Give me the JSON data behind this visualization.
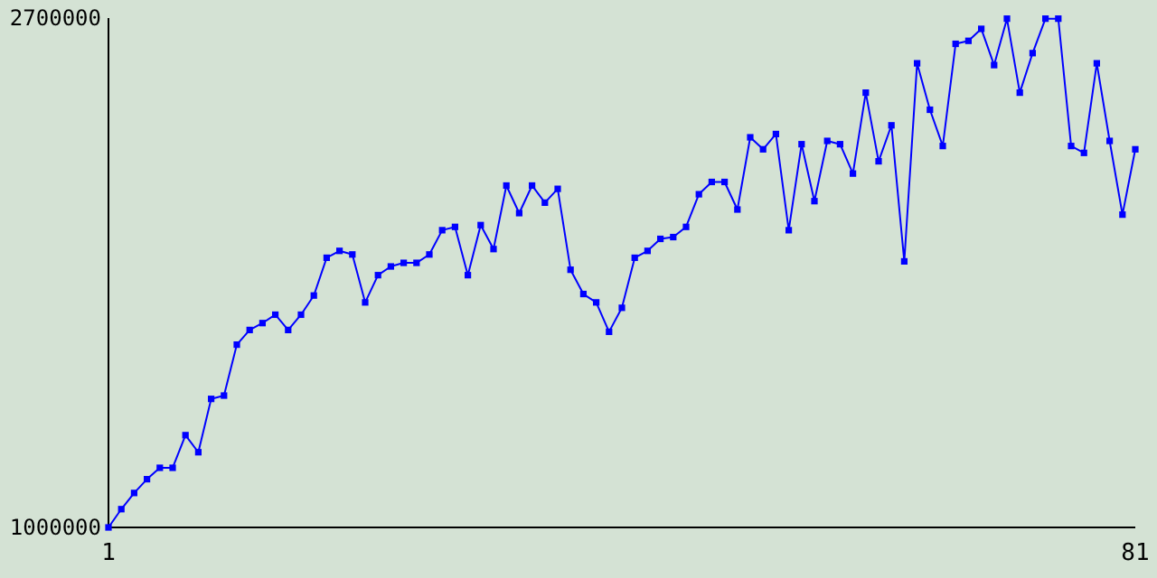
{
  "chart_data": {
    "type": "line",
    "x": [
      1,
      2,
      3,
      4,
      5,
      6,
      7,
      8,
      9,
      10,
      11,
      12,
      13,
      14,
      15,
      16,
      17,
      18,
      19,
      20,
      21,
      22,
      23,
      24,
      25,
      26,
      27,
      28,
      29,
      30,
      31,
      32,
      33,
      34,
      35,
      36,
      37,
      38,
      39,
      40,
      41,
      42,
      43,
      44,
      45,
      46,
      47,
      48,
      49,
      50,
      51,
      52,
      53,
      54,
      55,
      56,
      57,
      58,
      59,
      60,
      61,
      62,
      63,
      64,
      65,
      66,
      67,
      68,
      69,
      70,
      71,
      72,
      73,
      74,
      75,
      76,
      77,
      78,
      79,
      80,
      81
    ],
    "series": [
      {
        "color": "#0000ff",
        "values": [
          1000000,
          1061000,
          1115000,
          1161000,
          1199000,
          1199000,
          1308000,
          1251000,
          1429000,
          1440000,
          1610000,
          1659000,
          1682000,
          1710000,
          1659000,
          1710000,
          1774000,
          1900000,
          1923000,
          1911000,
          1751000,
          1842000,
          1871000,
          1883000,
          1883000,
          1911000,
          1992000,
          2003000,
          1842000,
          2009000,
          1929000,
          2141000,
          2049000,
          2141000,
          2084000,
          2130000,
          1860000,
          1779000,
          1751000,
          1653000,
          1733000,
          1900000,
          1923000,
          1963000,
          1969000,
          2003000,
          2112000,
          2153000,
          2153000,
          2061000,
          2302000,
          2262000,
          2313000,
          1992000,
          2279000,
          2089000,
          2290000,
          2279000,
          2181000,
          2451000,
          2222000,
          2342000,
          1888000,
          2549000,
          2394000,
          2273000,
          2614000,
          2624000,
          2664000,
          2543000,
          2698000,
          2451000,
          2583000,
          2698000,
          2698000,
          2273000,
          2250000,
          2549000,
          2290000,
          2044000,
          2262000
        ]
      }
    ],
    "xlim": [
      1,
      81
    ],
    "xticks": [
      1,
      81
    ],
    "ylim": [
      1000000,
      2700000
    ],
    "yticks": [
      1000000,
      2700000
    ],
    "marker": "square",
    "line_style": "solid"
  }
}
